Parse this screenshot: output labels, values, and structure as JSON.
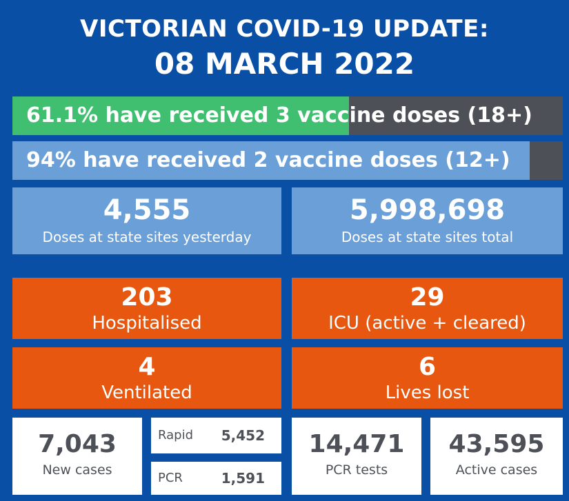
{
  "header": {
    "title_line1": "VICTORIAN COVID-19 UPDATE:",
    "title_line2": "08 MARCH 2022"
  },
  "vaccination": {
    "three_dose": {
      "text": "61.1% have received 3 vaccine doses (18+)",
      "percent": 61.1,
      "fill_color": "#3fbf6f"
    },
    "two_dose": {
      "text": "94% have received 2 vaccine doses (12+)",
      "percent": 94,
      "fill_color": "#6b9fd8"
    },
    "remainder_color": "#4d5157"
  },
  "doses": {
    "yesterday": {
      "value": "4,555",
      "label": "Doses at state sites yesterday"
    },
    "total": {
      "value": "5,998,698",
      "label": "Doses at state sites total"
    }
  },
  "hospital": {
    "hospitalised": {
      "value": "203",
      "label": "Hospitalised"
    },
    "icu": {
      "value": "29",
      "label": "ICU (active + cleared)"
    },
    "ventilated": {
      "value": "4",
      "label": "Ventilated"
    },
    "lives_lost": {
      "value": "6",
      "label": "Lives lost"
    }
  },
  "cases": {
    "new_cases": {
      "value": "7,043",
      "label": "New cases"
    },
    "rapid": {
      "label": "Rapid",
      "value": "5,452"
    },
    "pcr": {
      "label": "PCR",
      "value": "1,591"
    },
    "pcr_tests": {
      "value": "14,471",
      "label": "PCR tests"
    },
    "active_cases": {
      "value": "43,595",
      "label": "Active cases"
    }
  },
  "colors": {
    "background": "#0a4fa6",
    "blue_box": "#6b9fd8",
    "orange_box": "#e8570f",
    "dark_text": "#4d5157"
  }
}
